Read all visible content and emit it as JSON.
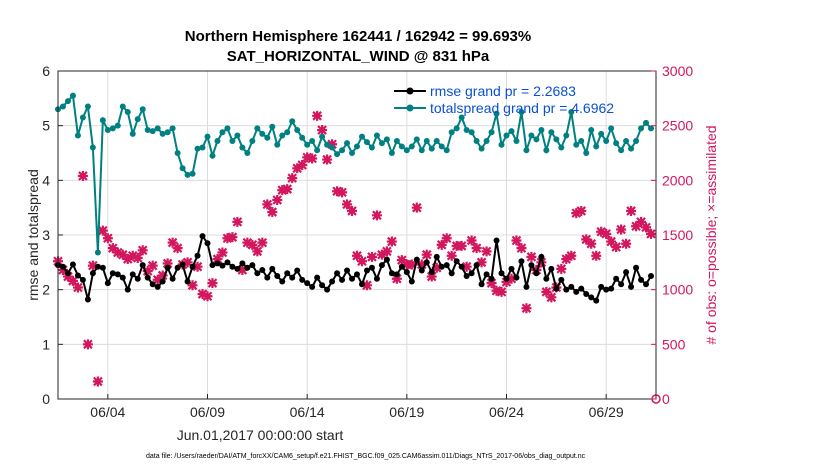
{
  "colors": {
    "rmse": "#000000",
    "totalspread": "#008080",
    "obs": "#d3175f",
    "legend_text": "#0a4fd6",
    "grid": "#dcdcdc",
    "axis": "#262626"
  },
  "chart_data": {
    "type": "line",
    "title": "Northern Hemisphere 162441 / 162942 = 99.693%",
    "subtitle": "SAT_HORIZONTAL_WIND @ 831 hPa",
    "xlabel": "Jun.01,2017 00:00:00 start",
    "ylabel": "rmse and totalspread",
    "ylabel_right": "# of obs: o=possible; ×=assimilated",
    "footnote": "data file: /Users/raeder/DAI/ATM_forcXX/CAM6_setup/f.e21.FHIST_BGC.f09_025.CAM6assim.011/Diags_NTrS_2017-06/obs_diag_output.nc",
    "xlim": [
      0.5,
      30.5
    ],
    "ylim": [
      0,
      6
    ],
    "ylim_right": [
      0,
      3000
    ],
    "x_ticks": [
      3,
      8,
      13,
      18,
      23,
      28
    ],
    "x_tick_labels": [
      "06/04",
      "06/09",
      "06/14",
      "06/19",
      "06/24",
      "06/29"
    ],
    "y_ticks": [
      0,
      1,
      2,
      3,
      4,
      5,
      6
    ],
    "y_ticks_right": [
      0,
      500,
      1000,
      1500,
      2000,
      2500,
      3000
    ],
    "grid": true,
    "legend_position": "top-right",
    "x": [
      0.5,
      0.75,
      1,
      1.25,
      1.5,
      1.75,
      2,
      2.25,
      2.5,
      2.75,
      3,
      3.25,
      3.5,
      3.75,
      4,
      4.25,
      4.5,
      4.75,
      5,
      5.25,
      5.5,
      5.75,
      6,
      6.25,
      6.5,
      6.75,
      7,
      7.25,
      7.5,
      7.75,
      8,
      8.25,
      8.5,
      8.75,
      9,
      9.25,
      9.5,
      9.75,
      10,
      10.25,
      10.5,
      10.75,
      11,
      11.25,
      11.5,
      11.75,
      12,
      12.25,
      12.5,
      12.75,
      13,
      13.25,
      13.5,
      13.75,
      14,
      14.25,
      14.5,
      14.75,
      15,
      15.25,
      15.5,
      15.75,
      16,
      16.25,
      16.5,
      16.75,
      17,
      17.25,
      17.5,
      17.75,
      18,
      18.25,
      18.5,
      18.75,
      19,
      19.25,
      19.5,
      19.75,
      20,
      20.25,
      20.5,
      20.75,
      21,
      21.25,
      21.5,
      21.75,
      22,
      22.25,
      22.5,
      22.75,
      23,
      23.25,
      23.5,
      23.75,
      24,
      24.25,
      24.5,
      24.75,
      25,
      25.25,
      25.5,
      25.75,
      26,
      26.25,
      26.5,
      26.75,
      27,
      27.25,
      27.5,
      27.75,
      28,
      28.25,
      28.5,
      28.75,
      29,
      29.25,
      29.5,
      29.75,
      30,
      30.25
    ],
    "series": [
      {
        "name": "rmse grand pr = 2.2683",
        "axis": "left",
        "values": [
          2.45,
          2.42,
          2.3,
          2.46,
          2.26,
          2.18,
          1.82,
          2.3,
          2.42,
          2.4,
          2.12,
          2.3,
          2.28,
          2.22,
          2.0,
          2.28,
          2.2,
          2.45,
          2.22,
          2.1,
          2.05,
          2.15,
          2.4,
          2.2,
          2.4,
          2.46,
          2.15,
          2.42,
          2.62,
          2.98,
          2.85,
          2.45,
          2.48,
          2.44,
          2.5,
          2.42,
          2.38,
          2.48,
          2.4,
          2.45,
          2.3,
          2.36,
          2.22,
          2.38,
          2.25,
          2.15,
          2.3,
          2.22,
          2.35,
          2.18,
          2.12,
          2.05,
          2.22,
          2.08,
          2.0,
          2.15,
          2.3,
          2.18,
          2.35,
          2.2,
          2.28,
          2.1,
          2.35,
          2.4,
          2.2,
          2.45,
          2.55,
          2.3,
          2.28,
          2.42,
          2.32,
          2.15,
          2.55,
          2.35,
          2.5,
          2.32,
          2.6,
          2.42,
          2.45,
          2.3,
          2.52,
          2.42,
          2.25,
          2.3,
          2.45,
          2.1,
          2.28,
          2.2,
          2.9,
          2.3,
          2.2,
          2.38,
          2.22,
          2.52,
          2.05,
          2.45,
          2.3,
          2.6,
          2.2,
          2.38,
          2.02,
          2.18,
          2.0,
          2.05,
          1.96,
          2.02,
          1.92,
          1.86,
          1.8,
          2.05,
          2.0,
          2.02,
          2.2,
          2.1,
          2.32,
          2.05,
          2.4,
          2.18,
          2.1,
          2.25
        ]
      },
      {
        "name": "totalspread grand pr = 4.6962",
        "axis": "left",
        "values": [
          5.3,
          5.35,
          5.45,
          5.55,
          4.82,
          5.15,
          5.35,
          4.6,
          2.68,
          5.1,
          4.92,
          4.95,
          5.0,
          5.35,
          5.25,
          4.85,
          5.12,
          5.3,
          4.92,
          4.9,
          4.95,
          4.85,
          4.88,
          4.95,
          4.5,
          4.22,
          4.1,
          4.12,
          4.58,
          4.6,
          4.8,
          4.45,
          4.72,
          4.88,
          4.95,
          4.72,
          4.82,
          4.6,
          4.5,
          4.72,
          4.95,
          4.85,
          4.78,
          4.98,
          4.65,
          4.82,
          4.88,
          5.08,
          4.92,
          4.78,
          4.65,
          4.72,
          4.55,
          4.8,
          4.65,
          4.6,
          4.48,
          4.55,
          4.68,
          4.5,
          4.62,
          4.8,
          4.7,
          4.6,
          4.82,
          4.68,
          4.75,
          4.5,
          4.72,
          4.62,
          4.55,
          4.62,
          4.75,
          4.55,
          4.72,
          4.58,
          4.72,
          4.62,
          4.55,
          4.88,
          4.95,
          5.15,
          4.92,
          4.88,
          4.72,
          4.58,
          4.72,
          4.88,
          5.22,
          4.65,
          4.82,
          4.9,
          4.72,
          5.25,
          4.55,
          4.82,
          4.75,
          4.92,
          4.55,
          4.88,
          4.75,
          4.6,
          4.82,
          5.25,
          4.65,
          4.72,
          4.5,
          4.92,
          4.62,
          4.85,
          4.72,
          4.95,
          4.68,
          4.55,
          4.72,
          4.58,
          4.72,
          4.95,
          5.05,
          4.95
        ]
      },
      {
        "name": "# obs assimilated",
        "axis": "right",
        "values": [
          1260,
          1180,
          1120,
          1080,
          1020,
          2040,
          500,
          1220,
          160,
          1540,
          1470,
          1380,
          1340,
          1320,
          1280,
          1310,
          1290,
          1360,
          1170,
          1220,
          1090,
          1130,
          1240,
          1430,
          1380,
          1230,
          1250,
          1040,
          1210,
          960,
          940,
          1060,
          1280,
          1340,
          1470,
          1480,
          1620,
          1180,
          1430,
          1410,
          1350,
          1430,
          1780,
          1710,
          1820,
          1910,
          1920,
          2020,
          2110,
          2140,
          2210,
          2200,
          2590,
          2460,
          2190,
          2330,
          1900,
          1890,
          1780,
          1720,
          1310,
          1260,
          1040,
          1300,
          1680,
          1320,
          1350,
          1440,
          1100,
          1270,
          1230,
          1230,
          1750,
          1230,
          1320,
          1120,
          1200,
          1410,
          1470,
          1310,
          1400,
          1400,
          1210,
          1450,
          1380,
          1250,
          1350,
          1060,
          990,
          980,
          1070,
          1100,
          1450,
          1380,
          830,
          1300,
          1180,
          1250,
          980,
          930,
          1020,
          1190,
          1280,
          1310,
          1700,
          1720,
          1460,
          1420,
          1310,
          1530,
          1510,
          1440,
          1390,
          1550,
          1420,
          1720,
          1580,
          1620,
          1570,
          1510
        ]
      }
    ],
    "extra_obs_points": [
      {
        "x": 30.5,
        "y": 0
      }
    ]
  }
}
